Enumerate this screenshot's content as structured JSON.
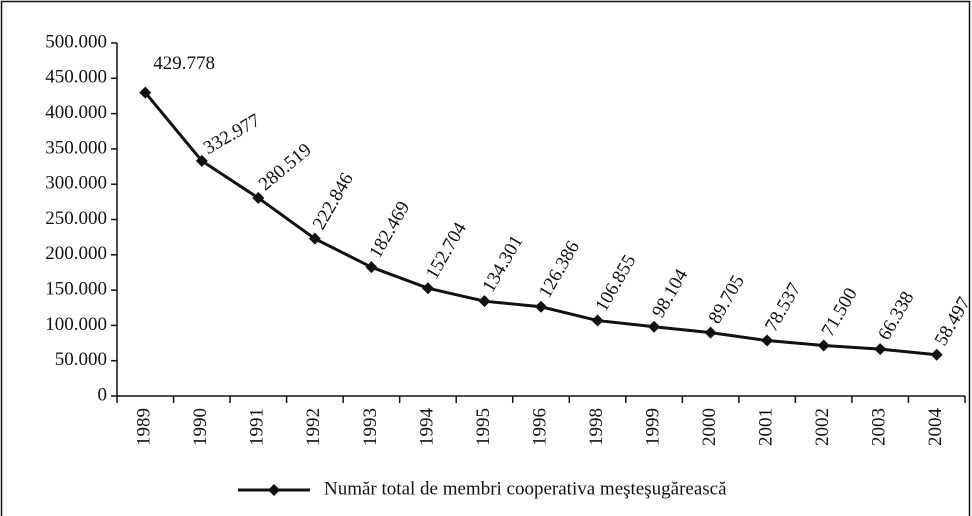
{
  "chart_data": {
    "type": "line",
    "categories": [
      "1989",
      "1990",
      "1991",
      "1992",
      "1993",
      "1994",
      "1995",
      "1996",
      "1998",
      "1999",
      "2000",
      "2001",
      "2002",
      "2003",
      "2004"
    ],
    "series": [
      {
        "name": "Număr total de membri cooperativa meşteşugărească",
        "color": "#111111",
        "values": [
          429778,
          332977,
          280519,
          222846,
          182469,
          152704,
          134301,
          126386,
          106855,
          98104,
          89705,
          78537,
          71500,
          66338,
          58497
        ],
        "value_labels": [
          "429.778",
          "332.977",
          "280.519",
          "222.846",
          "182.469",
          "152.704",
          "134.301",
          "126.386",
          "106.855",
          "98.104",
          "89.705",
          "78.537",
          "71.500",
          "66.338",
          "58.497"
        ]
      }
    ],
    "ylim": [
      0,
      500000
    ],
    "yticks": [
      0,
      {
        "value": 50000,
        "label": "50.000"
      },
      {
        "value": 100000,
        "label": "100.000"
      },
      {
        "value": 150000,
        "label": "150.000"
      },
      {
        "value": 200000,
        "label": "200.000"
      },
      {
        "value": 250000,
        "label": "250.000"
      },
      {
        "value": 300000,
        "label": "300.000"
      },
      {
        "value": 350000,
        "label": "350.000"
      },
      {
        "value": 400000,
        "label": "400.000"
      },
      {
        "value": 450000,
        "label": "450.000"
      },
      {
        "value": 500000,
        "label": "500.000"
      }
    ],
    "legend": "bottom"
  }
}
